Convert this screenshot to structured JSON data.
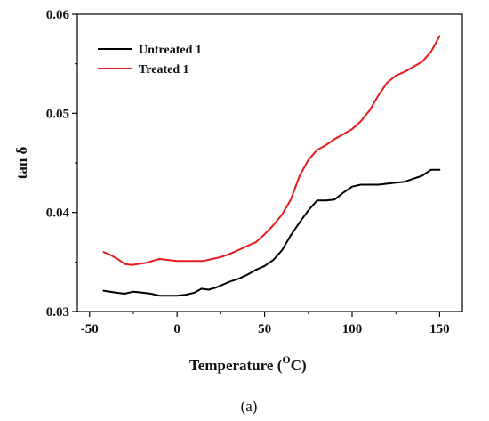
{
  "chart_data": {
    "type": "line",
    "xlabel": "Temperature",
    "xlabel_unit_main": "O",
    "xlabel_unit_suffix": "C",
    "ylabel": "tan δ",
    "xlim": [
      -57,
      163
    ],
    "ylim": [
      0.03,
      0.06
    ],
    "x_ticks": [
      -50,
      0,
      50,
      100,
      150
    ],
    "x_tick_labels": [
      "-50",
      "0",
      "50",
      "100",
      "150"
    ],
    "y_ticks": [
      0.03,
      0.04,
      0.05,
      0.06
    ],
    "y_tick_labels": [
      "0.03",
      "0.04",
      "0.05",
      "0.06"
    ],
    "legend_position": "top-left",
    "caption": "(a)",
    "series": [
      {
        "name": "Untreated 1",
        "color": "#000000",
        "x": [
          -42,
          -35,
          -30,
          -25,
          -20,
          -15,
          -10,
          -5,
          0,
          5,
          10,
          14,
          18,
          22,
          26,
          30,
          35,
          40,
          45,
          50,
          55,
          60,
          65,
          70,
          75,
          80,
          85,
          90,
          95,
          100,
          105,
          110,
          115,
          120,
          125,
          130,
          135,
          140,
          145,
          150
        ],
        "y": [
          0.0321,
          0.0319,
          0.0318,
          0.032,
          0.0319,
          0.0318,
          0.0316,
          0.0316,
          0.0316,
          0.0317,
          0.0319,
          0.0323,
          0.0322,
          0.0324,
          0.0327,
          0.033,
          0.0333,
          0.0337,
          0.0342,
          0.0346,
          0.0352,
          0.0362,
          0.0377,
          0.039,
          0.0402,
          0.0412,
          0.0412,
          0.0413,
          0.042,
          0.0426,
          0.0428,
          0.0428,
          0.0428,
          0.0429,
          0.043,
          0.0431,
          0.0434,
          0.0437,
          0.0443,
          0.0443
        ]
      },
      {
        "name": "Treated 1",
        "color": "#e8191c",
        "x": [
          -42,
          -38,
          -34,
          -30,
          -26,
          -22,
          -18,
          -14,
          -10,
          -5,
          0,
          5,
          10,
          15,
          20,
          25,
          30,
          35,
          40,
          45,
          50,
          55,
          60,
          65,
          70,
          75,
          80,
          85,
          90,
          95,
          100,
          105,
          110,
          115,
          120,
          125,
          130,
          135,
          140,
          145,
          150
        ],
        "y": [
          0.036,
          0.0357,
          0.0353,
          0.0348,
          0.0347,
          0.0348,
          0.0349,
          0.0351,
          0.0353,
          0.0352,
          0.0351,
          0.0351,
          0.0351,
          0.0351,
          0.0353,
          0.0355,
          0.0358,
          0.0362,
          0.0366,
          0.037,
          0.0378,
          0.0387,
          0.0398,
          0.0413,
          0.0437,
          0.0453,
          0.0463,
          0.0468,
          0.0474,
          0.0479,
          0.0484,
          0.0492,
          0.0503,
          0.0518,
          0.0531,
          0.0538,
          0.0542,
          0.0547,
          0.0552,
          0.0562,
          0.0578
        ]
      }
    ]
  }
}
